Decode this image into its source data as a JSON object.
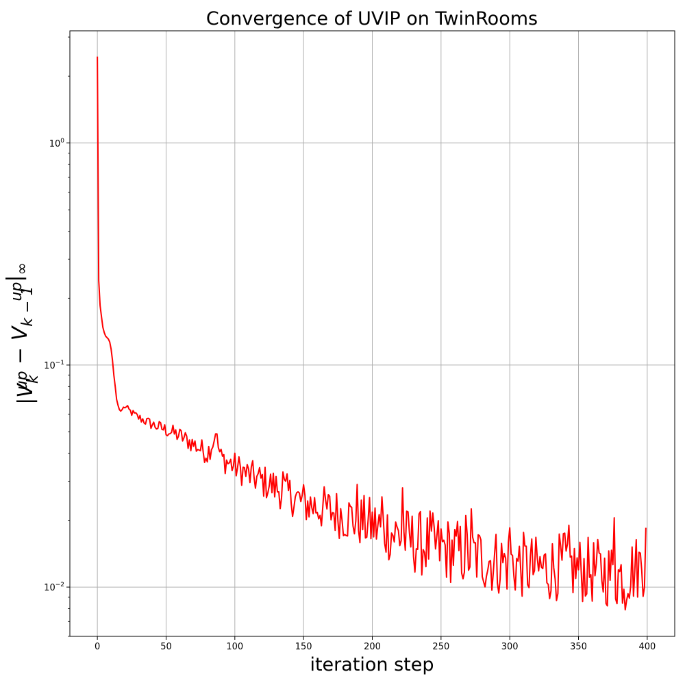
{
  "chart_data": {
    "type": "line",
    "title": "Convergence of UVIP on TwinRooms",
    "xlabel": "iteration step",
    "ylabel": {
      "parts": [
        {
          "t": "|V",
          "style": "italic"
        },
        {
          "t": "k",
          "sub": true
        },
        {
          "t": "up",
          "sup": true
        },
        {
          "t": " − ",
          "style": "normal"
        },
        {
          "t": "V",
          "style": "italic"
        },
        {
          "t": "k − 1",
          "sub": true
        },
        {
          "t": "up",
          "sup": true
        },
        {
          "t": "|",
          "style": "normal"
        },
        {
          "t": "∞",
          "sub": true
        }
      ]
    },
    "x_scale": "linear",
    "y_scale": "log",
    "xlim": [
      -20,
      420
    ],
    "ylim": [
      0.006,
      3.2
    ],
    "x_ticks": [
      0,
      50,
      100,
      150,
      200,
      250,
      300,
      350,
      400
    ],
    "x_tick_labels": [
      "0",
      "50",
      "100",
      "150",
      "200",
      "250",
      "300",
      "350",
      "400"
    ],
    "y_major_ticks": [
      0.01,
      0.1,
      1
    ],
    "y_tick_labels": [
      {
        "base": "10",
        "exp": "−2"
      },
      {
        "base": "10",
        "exp": "−1"
      },
      {
        "base": "10",
        "exp": "0"
      }
    ],
    "grid": true,
    "colors": {
      "line": "#ff0000",
      "grid": "#b0b0b0",
      "axes": "#000000"
    },
    "series": [
      {
        "color": "#ff0000",
        "anchors": [
          [
            0,
            2.45
          ],
          [
            1,
            0.24
          ],
          [
            2,
            0.185
          ],
          [
            3,
            0.165
          ],
          [
            4,
            0.148
          ],
          [
            5,
            0.14
          ],
          [
            6,
            0.135
          ],
          [
            7,
            0.133
          ],
          [
            8,
            0.131
          ],
          [
            9,
            0.127
          ],
          [
            10,
            0.118
          ],
          [
            11,
            0.105
          ],
          [
            12,
            0.09
          ],
          [
            13,
            0.08
          ],
          [
            14,
            0.07
          ],
          [
            15,
            0.066
          ],
          [
            16,
            0.063
          ],
          [
            17,
            0.062
          ],
          [
            20,
            0.065
          ],
          [
            25,
            0.061
          ],
          [
            30,
            0.058
          ],
          [
            40,
            0.054
          ],
          [
            50,
            0.051
          ],
          [
            60,
            0.048
          ],
          [
            70,
            0.044
          ],
          [
            80,
            0.04
          ],
          [
            86,
            0.048
          ],
          [
            90,
            0.038
          ],
          [
            100,
            0.035
          ],
          [
            110,
            0.032
          ],
          [
            120,
            0.03
          ],
          [
            130,
            0.028
          ],
          [
            140,
            0.026
          ],
          [
            150,
            0.024
          ],
          [
            160,
            0.023
          ],
          [
            170,
            0.022
          ],
          [
            180,
            0.021
          ],
          [
            190,
            0.02
          ],
          [
            200,
            0.019
          ],
          [
            210,
            0.018
          ],
          [
            220,
            0.017
          ],
          [
            230,
            0.016
          ],
          [
            240,
            0.0155
          ],
          [
            250,
            0.015
          ],
          [
            260,
            0.0145
          ],
          [
            270,
            0.014
          ],
          [
            280,
            0.0135
          ],
          [
            290,
            0.013
          ],
          [
            300,
            0.0128
          ],
          [
            310,
            0.0125
          ],
          [
            320,
            0.012
          ],
          [
            330,
            0.0122
          ],
          [
            340,
            0.0125
          ],
          [
            350,
            0.012
          ],
          [
            360,
            0.0118
          ],
          [
            370,
            0.0115
          ],
          [
            380,
            0.0112
          ],
          [
            390,
            0.012
          ],
          [
            399,
            0.013
          ]
        ],
        "spikes": [
          [
            86,
            0.049
          ],
          [
            135,
            0.033
          ],
          [
            189,
            0.029
          ],
          [
            207,
            0.0255
          ],
          [
            222,
            0.028
          ],
          [
            242,
            0.022
          ],
          [
            268,
            0.021
          ],
          [
            272,
            0.0225
          ],
          [
            300,
            0.0185
          ],
          [
            340,
            0.0175
          ],
          [
            343,
            0.019
          ],
          [
            376,
            0.0205
          ],
          [
            384,
            0.0079
          ],
          [
            399,
            0.0185
          ]
        ]
      }
    ]
  }
}
